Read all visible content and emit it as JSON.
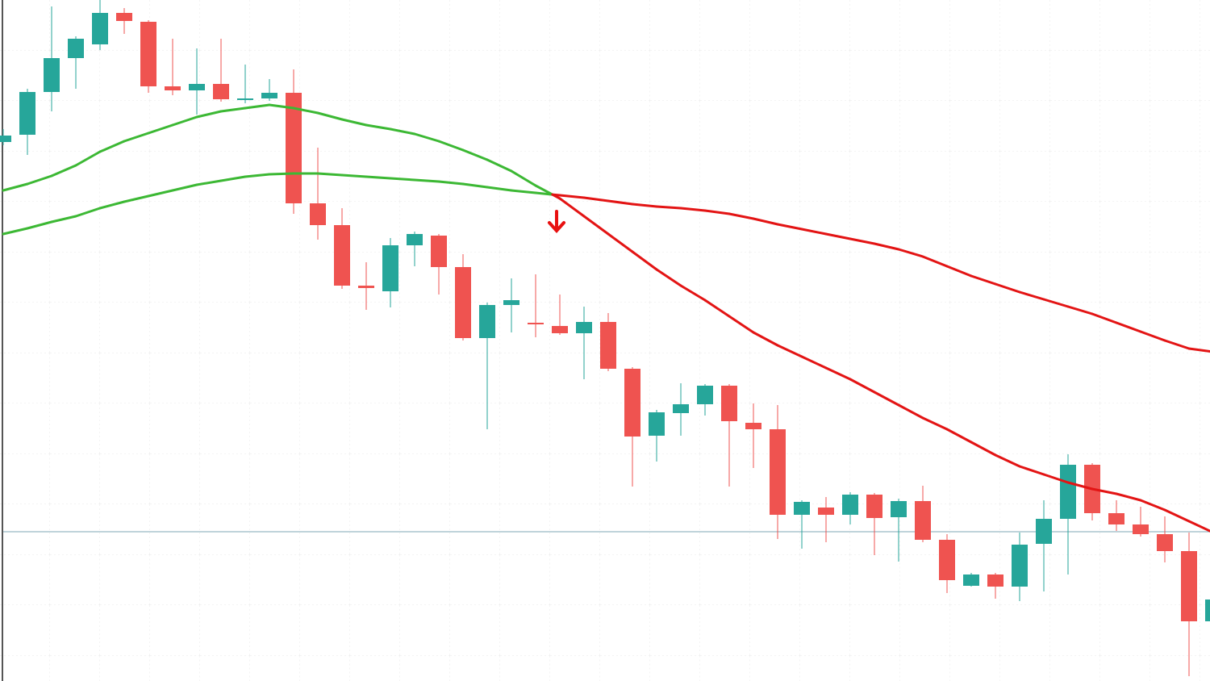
{
  "chart_data": {
    "type": "candlestick",
    "open": [
      668,
      677,
      730,
      772,
      789,
      828,
      817,
      737,
      732,
      740,
      721,
      722,
      729,
      592,
      565,
      490,
      483,
      540,
      552,
      513,
      425,
      466,
      444,
      440,
      431,
      445,
      387,
      304,
      332,
      343,
      366,
      320,
      312,
      206,
      215,
      206,
      231,
      203,
      223,
      175,
      118,
      132,
      117,
      170,
      201,
      268,
      208,
      194,
      182,
      161,
      74
    ],
    "high": [
      684,
      734,
      836,
      799,
      844,
      834,
      819,
      796,
      784,
      796,
      764,
      746,
      758,
      661,
      586,
      519,
      549,
      557,
      554,
      529,
      469,
      499,
      504,
      479,
      464,
      456,
      389,
      336,
      369,
      368,
      368,
      344,
      342,
      224,
      228,
      234,
      233,
      226,
      242,
      182,
      134,
      134,
      184,
      224,
      281,
      270,
      224,
      216,
      204,
      184,
      124
    ],
    "low": [
      664,
      652,
      706,
      734,
      782,
      802,
      729,
      726,
      702,
      718,
      716,
      719,
      579,
      547,
      486,
      460,
      463,
      514,
      479,
      422,
      312,
      432,
      426,
      429,
      374,
      384,
      241,
      272,
      304,
      329,
      241,
      264,
      176,
      164,
      172,
      194,
      156,
      148,
      172,
      109,
      117,
      102,
      99,
      111,
      132,
      199,
      186,
      179,
      147,
      6,
      24
    ],
    "close": [
      676,
      730,
      772,
      796,
      828,
      818,
      737,
      732,
      740,
      721,
      722,
      729,
      592,
      565,
      490,
      487,
      540,
      554,
      513,
      425,
      466,
      472,
      442,
      431,
      445,
      387,
      303,
      333,
      343,
      366,
      322,
      312,
      206,
      222,
      206,
      231,
      202,
      223,
      175,
      125,
      132,
      117,
      169,
      201,
      268,
      208,
      194,
      182,
      161,
      74,
      101
    ],
    "up_color": "#26a69a",
    "down_color": "#ef5350",
    "series": [
      {
        "values": [
          608,
          616,
          626,
          639,
          656,
          669,
          679,
          689,
          699,
          706,
          710,
          714,
          710,
          704,
          696,
          689,
          684,
          678,
          669,
          658,
          646,
          632,
          614,
          598,
          576,
          554,
          532,
          510,
          490,
          472,
          452,
          432,
          416,
          402,
          388,
          374,
          358,
          342,
          326,
          312,
          296,
          280,
          266,
          256,
          246,
          238,
          232,
          224,
          212,
          198,
          184
        ]
      },
      {
        "values": [
          554,
          561,
          569,
          576,
          586,
          594,
          601,
          608,
          615,
          620,
          625,
          628,
          629,
          629,
          627,
          625,
          623,
          621,
          619,
          616,
          612,
          608,
          605,
          602,
          599,
          595,
          591,
          588,
          586,
          583,
          579,
          573,
          566,
          560,
          554,
          548,
          542,
          535,
          526,
          514,
          502,
          492,
          482,
          473,
          464,
          455,
          444,
          433,
          422,
          412,
          408
        ]
      }
    ],
    "bull_line_color": "#3cb834",
    "bear_line_color": "#e31414",
    "price_line": 185,
    "price_line_color": "#7fa7b5",
    "ylim": [
      0,
      844
    ],
    "grid": true
  }
}
